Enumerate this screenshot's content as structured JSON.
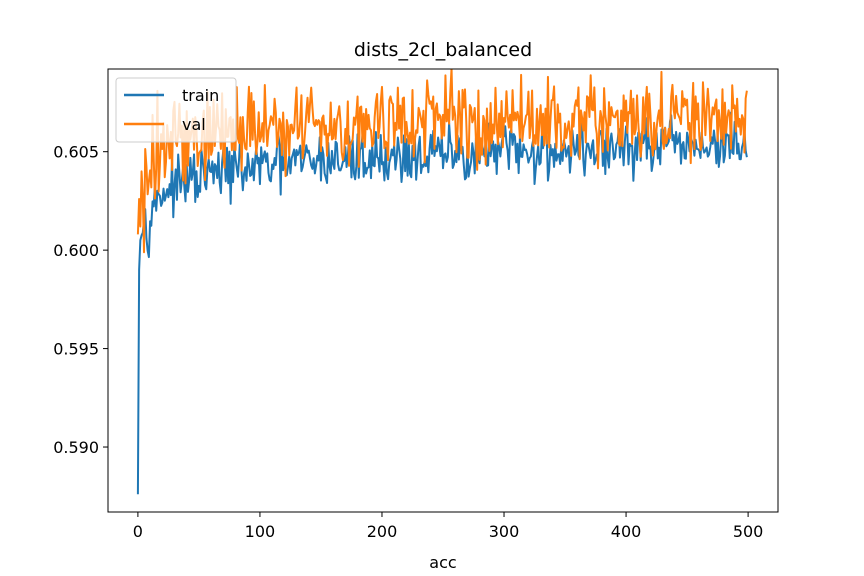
{
  "chart_data": {
    "type": "line",
    "title": "dists_2cl_balanced",
    "xlabel": "acc",
    "ylabel": "",
    "xlim": [
      -24.5,
      524.5
    ],
    "ylim": [
      0.5867,
      0.6092
    ],
    "x_ticks": [
      0,
      100,
      200,
      300,
      400,
      500
    ],
    "x_tick_labels": [
      "0",
      "100",
      "200",
      "300",
      "400",
      "500"
    ],
    "y_ticks": [
      0.59,
      0.595,
      0.6,
      0.605
    ],
    "y_tick_labels": [
      "0.590",
      "0.595",
      "0.600",
      "0.605"
    ],
    "grid": false,
    "legend_position": "upper-left",
    "series": [
      {
        "name": "train",
        "color": "#1f77b4",
        "x": [
          0,
          1,
          2,
          3,
          4,
          5,
          6,
          8,
          10,
          12,
          15,
          18,
          21,
          25,
          30,
          35,
          40,
          50,
          60,
          70,
          80,
          90,
          100,
          110,
          120,
          130,
          140,
          150,
          160,
          170,
          180,
          190,
          200,
          210,
          220,
          230,
          240,
          250,
          260,
          270,
          280,
          290,
          300,
          310,
          320,
          330,
          340,
          350,
          360,
          370,
          380,
          390,
          400,
          410,
          420,
          430,
          440,
          450,
          460,
          470,
          480,
          490,
          499
        ],
        "values": [
          0.5876,
          0.599,
          0.6005,
          0.6012,
          0.6018,
          0.6008,
          0.602,
          0.601,
          0.6018,
          0.6022,
          0.6025,
          0.6028,
          0.603,
          0.6031,
          0.6032,
          0.6033,
          0.6035,
          0.6036,
          0.6038,
          0.604,
          0.6041,
          0.6042,
          0.6042,
          0.6043,
          0.6043,
          0.6044,
          0.6045,
          0.6045,
          0.6046,
          0.6046,
          0.6046,
          0.6047,
          0.6047,
          0.6047,
          0.6048,
          0.6048,
          0.6048,
          0.6048,
          0.6049,
          0.6049,
          0.6049,
          0.6049,
          0.605,
          0.605,
          0.605,
          0.605,
          0.605,
          0.6051,
          0.6051,
          0.6051,
          0.6051,
          0.6051,
          0.6052,
          0.6052,
          0.6052,
          0.6052,
          0.6052,
          0.6053,
          0.6053,
          0.6053,
          0.6053,
          0.6053,
          0.6054
        ],
        "noise": [
          0,
          0,
          0.0004,
          0.0006,
          0.0006,
          0.0006,
          0.0006,
          0.0006,
          0.0006,
          0.0006,
          0.0006,
          0.0006,
          0.0006,
          0.0006,
          0.0006,
          0.0006,
          0.0006,
          0.0007,
          0.0007,
          0.0007,
          0.0007,
          0.0007,
          0.0007,
          0.0007,
          0.0007,
          0.0007,
          0.0007,
          0.0007,
          0.0007,
          0.0007,
          0.0007,
          0.0007,
          0.0007,
          0.0007,
          0.0007,
          0.0007,
          0.0007,
          0.0007,
          0.0007,
          0.0007,
          0.0007,
          0.0007,
          0.0007,
          0.0007,
          0.0007,
          0.0007,
          0.0007,
          0.0007,
          0.0007,
          0.0007,
          0.0007,
          0.0007,
          0.0007,
          0.0007,
          0.0007,
          0.0007,
          0.0007,
          0.0007,
          0.0007,
          0.0007,
          0.0007,
          0.0007,
          0.0007
        ]
      },
      {
        "name": "val",
        "color": "#ff7f0e",
        "x": [
          0,
          1,
          2,
          3,
          4,
          5,
          6,
          8,
          10,
          12,
          15,
          18,
          21,
          25,
          30,
          35,
          40,
          50,
          60,
          70,
          80,
          90,
          100,
          110,
          120,
          130,
          140,
          150,
          160,
          170,
          180,
          190,
          200,
          210,
          220,
          230,
          240,
          250,
          260,
          270,
          280,
          290,
          300,
          310,
          320,
          330,
          340,
          350,
          360,
          370,
          380,
          390,
          400,
          410,
          420,
          430,
          440,
          450,
          460,
          470,
          480,
          490,
          499
        ],
        "values": [
          0.6008,
          0.6026,
          0.6012,
          0.605,
          0.604,
          0.6005,
          0.606,
          0.604,
          0.6045,
          0.605,
          0.6048,
          0.605,
          0.6052,
          0.6052,
          0.6055,
          0.6055,
          0.6056,
          0.6058,
          0.606,
          0.606,
          0.6062,
          0.6062,
          0.6062,
          0.6063,
          0.6063,
          0.6063,
          0.6064,
          0.6064,
          0.6064,
          0.6064,
          0.6064,
          0.6064,
          0.6065,
          0.6065,
          0.6065,
          0.6065,
          0.6065,
          0.6065,
          0.6065,
          0.6065,
          0.6065,
          0.6065,
          0.6066,
          0.6066,
          0.6066,
          0.6066,
          0.6066,
          0.6066,
          0.6066,
          0.6066,
          0.6066,
          0.6066,
          0.6066,
          0.6066,
          0.6066,
          0.6066,
          0.6066,
          0.6066,
          0.6066,
          0.6066,
          0.6066,
          0.6066,
          0.6066
        ],
        "noise": [
          0,
          0.001,
          0.0012,
          0.0014,
          0.0014,
          0.0014,
          0.0014,
          0.0014,
          0.0014,
          0.0014,
          0.0014,
          0.0014,
          0.0014,
          0.0013,
          0.0013,
          0.0013,
          0.0012,
          0.0012,
          0.0012,
          0.0011,
          0.0011,
          0.0011,
          0.001,
          0.001,
          0.001,
          0.001,
          0.001,
          0.001,
          0.001,
          0.001,
          0.001,
          0.001,
          0.001,
          0.001,
          0.001,
          0.001,
          0.001,
          0.001,
          0.001,
          0.001,
          0.001,
          0.001,
          0.001,
          0.001,
          0.001,
          0.001,
          0.001,
          0.001,
          0.001,
          0.001,
          0.001,
          0.001,
          0.001,
          0.001,
          0.001,
          0.001,
          0.001,
          0.001,
          0.001,
          0.001,
          0.001,
          0.001,
          0.001
        ]
      }
    ]
  }
}
